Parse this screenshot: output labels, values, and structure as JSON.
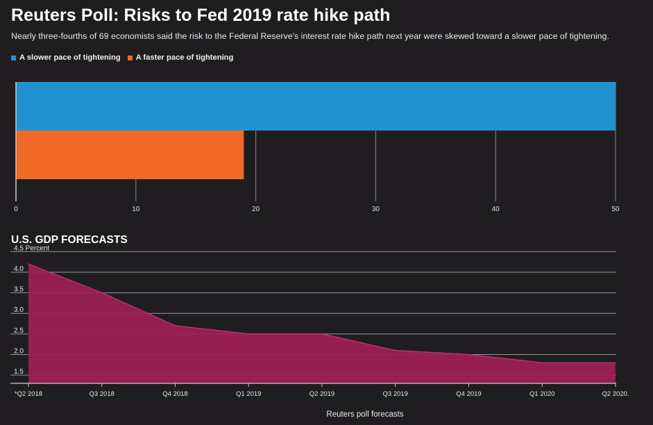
{
  "header": {
    "title": "Reuters Poll: Risks to Fed 2019 rate hike path",
    "subtitle": "Nearly three-fourths of 69 economists said the risk to the Federal Reserve's interest rate hike path next year were skewed toward a slower pace of tightening."
  },
  "legend": [
    {
      "label": "A slower pace of tightening",
      "color": "#2291d0"
    },
    {
      "label": "A faster pace of tightening",
      "color": "#f06a25"
    }
  ],
  "gdp": {
    "title": "U.S. GDP FORECASTS",
    "source": "Reuters poll forecasts"
  },
  "chart_data": [
    {
      "type": "bar",
      "orientation": "horizontal",
      "title": "Reuters Poll: Risks to Fed 2019 rate hike path",
      "series": [
        {
          "name": "A slower pace of tightening",
          "values": [
            50
          ],
          "color": "#2291d0"
        },
        {
          "name": "A faster pace of tightening",
          "values": [
            19
          ],
          "color": "#f06a25"
        }
      ],
      "xlim": [
        0,
        50
      ],
      "xticks": [
        0,
        10,
        20,
        30,
        40,
        50
      ],
      "grid": true,
      "legend_placement": "top-left"
    },
    {
      "type": "area",
      "title": "U.S. GDP FORECASTS",
      "x": [
        "*Q2 2018",
        "Q3 2018",
        "Q4 2018",
        "Q1 2019",
        "Q2 2019",
        "Q3 2019",
        "Q4 2019",
        "Q1 2020",
        "Q2 2020."
      ],
      "values": [
        4.2,
        3.5,
        2.7,
        2.5,
        2.5,
        2.1,
        2.0,
        1.8,
        1.8
      ],
      "ylim": [
        1.3,
        4.5
      ],
      "yticks": [
        "1.5",
        "2.0",
        "2.5",
        "3.0",
        "3.5",
        "4.0",
        "4.5 Percent"
      ],
      "ytick_values": [
        1.5,
        2.0,
        2.5,
        3.0,
        3.5,
        4.0,
        4.5
      ],
      "xlabel": "Reuters poll forecasts",
      "color": "#9e1f53",
      "grid": true
    }
  ]
}
